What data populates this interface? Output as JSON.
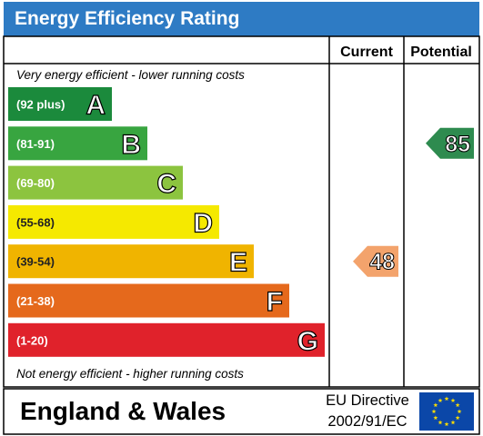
{
  "title": "Energy Efficiency Rating",
  "columns": {
    "current": "Current",
    "potential": "Potential"
  },
  "captions": {
    "top": "Very energy efficient - lower running costs",
    "bottom": "Not energy efficient - higher running costs"
  },
  "footer": {
    "region": "England & Wales",
    "directive_line1": "EU Directive",
    "directive_line2": "2002/91/EC",
    "flag": "eu-flag-icon"
  },
  "chart_data": {
    "type": "bar",
    "categories": [
      "A",
      "B",
      "C",
      "D",
      "E",
      "F",
      "G"
    ],
    "ranges": [
      "(92 plus)",
      "(81-91)",
      "(69-80)",
      "(55-68)",
      "(39-54)",
      "(21-38)",
      "(1-20)"
    ],
    "colors": [
      "#1b8a3c",
      "#38a540",
      "#8cc43f",
      "#f5e900",
      "#f0b400",
      "#e5691c",
      "#e0222b"
    ],
    "current": {
      "value": 48,
      "band": "E",
      "color": "#f3a36c"
    },
    "potential": {
      "value": 85,
      "band": "B",
      "color": "#2e8b4f"
    }
  }
}
